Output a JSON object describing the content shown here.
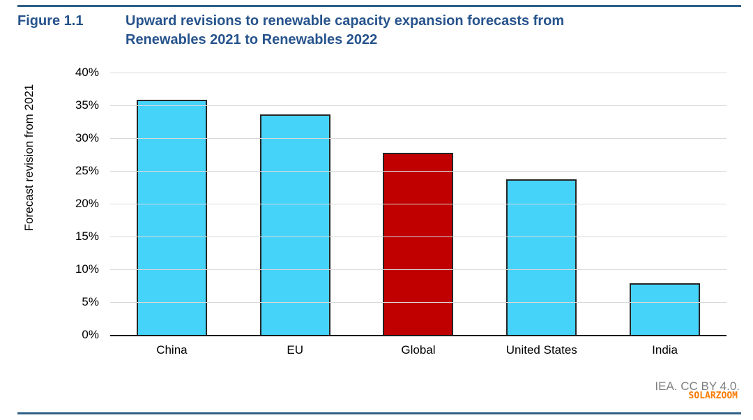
{
  "figure": {
    "label": "Figure 1.1",
    "title_lines": [
      "Upward revisions to renewable capacity expansion forecasts from",
      "Renewables 2021 to Renewables 2022"
    ]
  },
  "chart_data": {
    "type": "bar",
    "categories": [
      "China",
      "EU",
      "Global",
      "United States",
      "India"
    ],
    "values": [
      35.9,
      33.6,
      27.8,
      23.7,
      7.9
    ],
    "bar_colors": [
      "#45D3FA",
      "#45D3FA",
      "#C00000",
      "#45D3FA",
      "#45D3FA"
    ],
    "title": "Upward revisions to renewable capacity expansion forecasts from Renewables 2021 to Renewables 2022",
    "xlabel": "",
    "ylabel": "Forecast revision from 2021",
    "ylim": [
      0,
      40
    ],
    "ytick_step": 5,
    "ytick_suffix": "%",
    "grid": true,
    "legend": false
  },
  "footer": {
    "attribution": "IEA. CC BY 4.0.",
    "watermark": "SOLARZOOM"
  },
  "colors": {
    "rule": "#2E5F87",
    "title_text": "#26538C",
    "bar_default": "#45D3FA",
    "bar_highlight": "#C00000",
    "bar_border": "#262626",
    "gridline": "#D9D9D9",
    "axis": "#1a1a1a",
    "attribution_text": "#808080",
    "watermark_text": "#F97A00"
  }
}
